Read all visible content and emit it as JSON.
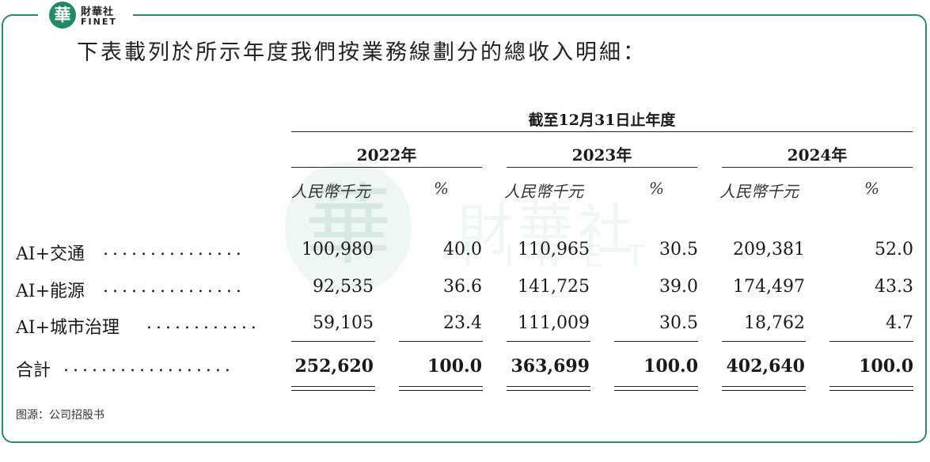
{
  "logo": {
    "seal_char": "華",
    "name_cn": "財華社",
    "name_en": "FINET"
  },
  "heading": "下表載列於所示年度我們按業務線劃分的總收入明細：",
  "table": {
    "period_header": "截至12月31日止年度",
    "years": [
      "2022年",
      "2023年",
      "2024年"
    ],
    "unit_amount": "人民幣千元",
    "unit_pct": "%",
    "rows": [
      {
        "label": "AI+交通",
        "leader": "...............",
        "values": [
          "100,980",
          "40.0",
          "110,965",
          "30.5",
          "209,381",
          "52.0"
        ]
      },
      {
        "label": "AI+能源",
        "leader": "...............",
        "values": [
          "92,535",
          "36.6",
          "141,725",
          "39.0",
          "174,497",
          "43.3"
        ]
      },
      {
        "label": "AI+城市治理",
        "leader": "............",
        "values": [
          "59,105",
          "23.4",
          "111,009",
          "30.5",
          "18,762",
          "4.7"
        ]
      }
    ],
    "total": {
      "label": "合計",
      "leader": "..................",
      "values": [
        "252,620",
        "100.0",
        "363,699",
        "100.0",
        "402,640",
        "100.0"
      ]
    }
  },
  "source": "图源：公司招股书"
}
